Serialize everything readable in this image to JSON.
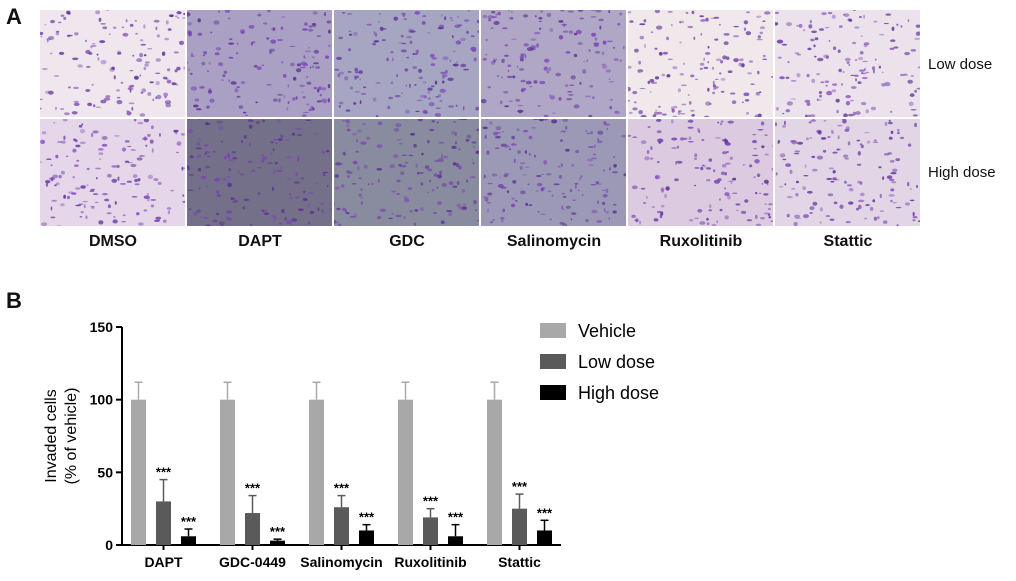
{
  "panel_a": {
    "letter": "A",
    "columns": [
      "DMSO",
      "DAPT",
      "GDC",
      "Salinomycin",
      "Ruxolitinib",
      "Stattic"
    ],
    "rows": [
      "Low dose",
      "High dose"
    ],
    "tile_colors": [
      [
        "#efe6ee",
        "#a9a0c4",
        "#a6a6c2",
        "#b0a7c6",
        "#f0e8ea",
        "#ece2ec"
      ],
      [
        "#e6d6ea",
        "#747089",
        "#898b9e",
        "#9c99b6",
        "#dccbe0",
        "#e2d5e6"
      ]
    ]
  },
  "panel_b": {
    "letter": "B"
  },
  "chart_data": {
    "type": "bar",
    "categories": [
      "DAPT",
      "GDC-0449",
      "Salinomycin",
      "Ruxolitinib",
      "Stattic"
    ],
    "series": [
      {
        "name": "Vehicle",
        "values": [
          100,
          100,
          100,
          100,
          100
        ],
        "errors": [
          12,
          12,
          12,
          12,
          12
        ],
        "color": "#a8a8a8"
      },
      {
        "name": "Low dose",
        "values": [
          30,
          22,
          26,
          19,
          25
        ],
        "errors": [
          15,
          12,
          8,
          6,
          10
        ],
        "color": "#5a5a5a"
      },
      {
        "name": "High dose",
        "values": [
          6,
          3,
          10,
          6,
          10
        ],
        "errors": [
          5,
          1,
          4,
          8,
          7
        ],
        "color": "#000000"
      }
    ],
    "significance": "***",
    "ylabel": "Invaded cells",
    "ylabel2": "(% of vehicle)",
    "ylim": [
      0,
      150
    ],
    "yticks": [
      0,
      50,
      100,
      150
    ],
    "legend_position": "top-right",
    "grid": false
  }
}
